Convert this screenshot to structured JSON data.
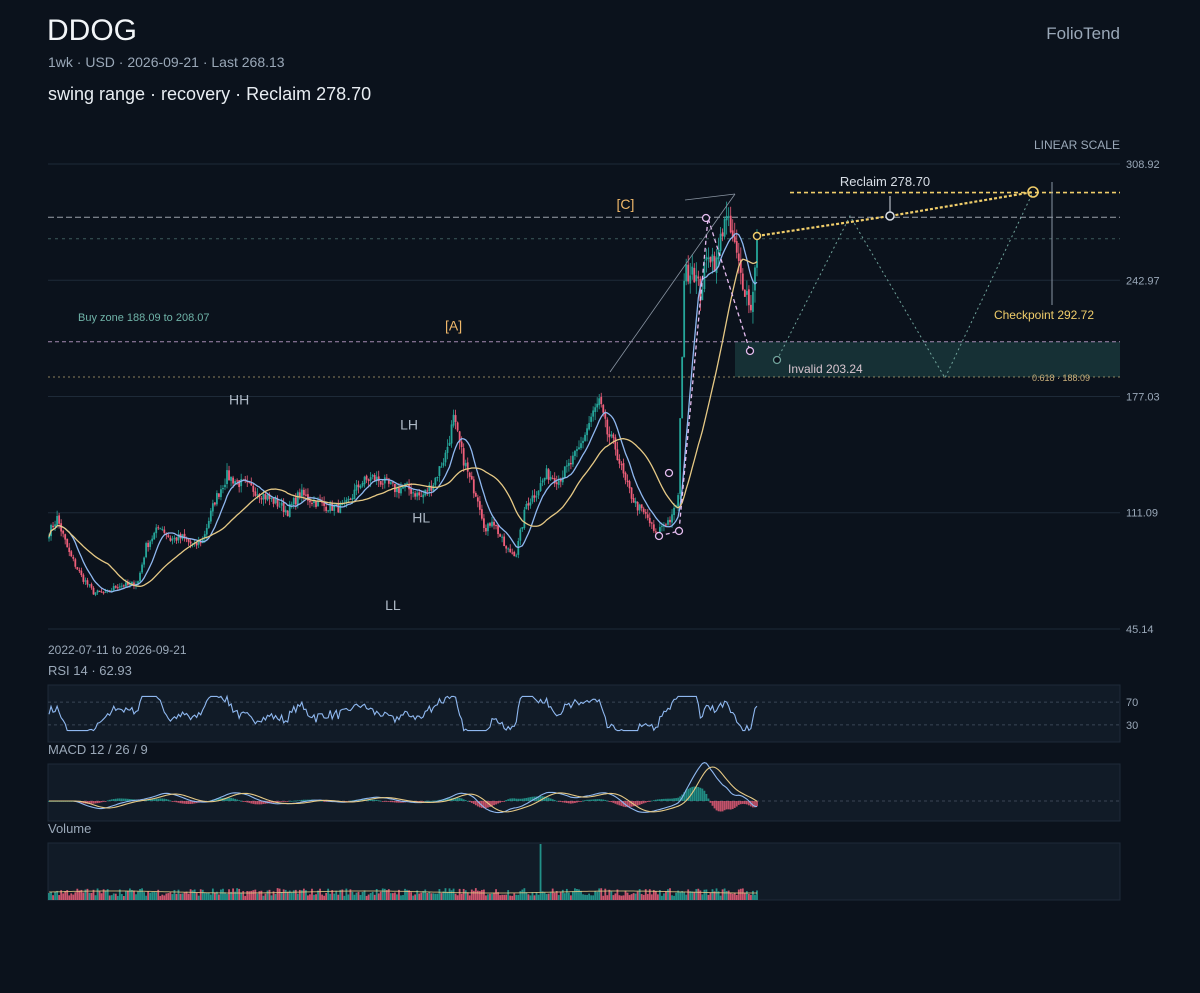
{
  "header": {
    "ticker": "DDOG",
    "subtitle": "1wk · USD · 2026-09-21 · Last 268.13",
    "note": "swing range · recovery · Reclaim 278.70",
    "brand": "FolioTend"
  },
  "colors": {
    "background": "#0b121c",
    "up": "#26a69a",
    "down": "#ef5f7a",
    "ma_fast": "#8fb8f0",
    "ma_slow": "#e6c985",
    "zone": "#2a6b63",
    "target": "#f0cd6a",
    "pivot": "#e6bdf0"
  },
  "chart_data": {
    "type": "candlestick",
    "scale_label": "LINEAR SCALE",
    "date_range": "2022-07-11 to 2026-09-21",
    "y_ticks": [
      "308.92",
      "242.97",
      "177.03",
      "111.09",
      "45.14"
    ],
    "ylim": [
      45.14,
      308.92
    ],
    "last": 268.13,
    "waypoints": [
      [
        0,
        100
      ],
      [
        4,
        108
      ],
      [
        10,
        88
      ],
      [
        16,
        75
      ],
      [
        22,
        66
      ],
      [
        28,
        65
      ],
      [
        34,
        70
      ],
      [
        40,
        70
      ],
      [
        44,
        72
      ],
      [
        48,
        92
      ],
      [
        55,
        104
      ],
      [
        60,
        96
      ],
      [
        66,
        97
      ],
      [
        72,
        92
      ],
      [
        76,
        96
      ],
      [
        82,
        118
      ],
      [
        88,
        132
      ],
      [
        94,
        128
      ],
      [
        100,
        125
      ],
      [
        106,
        121
      ],
      [
        112,
        117
      ],
      [
        118,
        112
      ],
      [
        124,
        122
      ],
      [
        130,
        118
      ],
      [
        136,
        115
      ],
      [
        142,
        114
      ],
      [
        146,
        114
      ],
      [
        154,
        128
      ],
      [
        160,
        131
      ],
      [
        166,
        128
      ],
      [
        172,
        124
      ],
      [
        176,
        126
      ],
      [
        184,
        120
      ],
      [
        190,
        128
      ],
      [
        196,
        144
      ],
      [
        200,
        164
      ],
      [
        204,
        145
      ],
      [
        208,
        130
      ],
      [
        212,
        120
      ],
      [
        216,
        100
      ],
      [
        219,
        108
      ],
      [
        226,
        90
      ],
      [
        231,
        88
      ],
      [
        236,
        116
      ],
      [
        241,
        123
      ],
      [
        246,
        133
      ],
      [
        252,
        130
      ],
      [
        258,
        139
      ],
      [
        262,
        147
      ],
      [
        268,
        165
      ],
      [
        272,
        174
      ],
      [
        276,
        156
      ],
      [
        280,
        148
      ],
      [
        285,
        128
      ],
      [
        290,
        116
      ],
      [
        296,
        108
      ],
      [
        300,
        98
      ],
      [
        303,
        104
      ],
      [
        308,
        108
      ],
      [
        311,
        120
      ],
      [
        314,
        245
      ],
      [
        318,
        252
      ],
      [
        322,
        235
      ],
      [
        326,
        260
      ],
      [
        330,
        252
      ],
      [
        334,
        280
      ],
      [
        338,
        266
      ],
      [
        342,
        246
      ],
      [
        346,
        232
      ],
      [
        347,
        225
      ],
      [
        350,
        268.13
      ]
    ],
    "swing_labels": [
      {
        "text": "HH",
        "price": 169
      },
      {
        "text": "LH",
        "price": 155
      },
      {
        "text": "HL",
        "price": 117
      },
      {
        "text": "LL",
        "price": 73
      },
      {
        "text": "[A]",
        "price": 210
      },
      {
        "text": "[C]",
        "price": 280
      }
    ],
    "zones": {
      "buy_label": "Buy zone 188.09 to 208.07",
      "buy_low": 188.09,
      "buy_high": 208.07,
      "fib_label": "0.618 · 188.09",
      "reclaim_label": "Reclaim 278.70",
      "reclaim": 278.7,
      "checkpoint_label": "Checkpoint 292.72",
      "checkpoint": 292.72,
      "invalid_label": "Invalid 203.24",
      "invalid": 203.24,
      "ref_line": 266.5
    },
    "rsi": {
      "label": "RSI 14 · 62.93",
      "value": 62.93,
      "levels": [
        "70",
        "30"
      ]
    },
    "macd": {
      "label": "MACD 12 / 26 / 9"
    },
    "volume": {
      "label": "Volume"
    }
  }
}
